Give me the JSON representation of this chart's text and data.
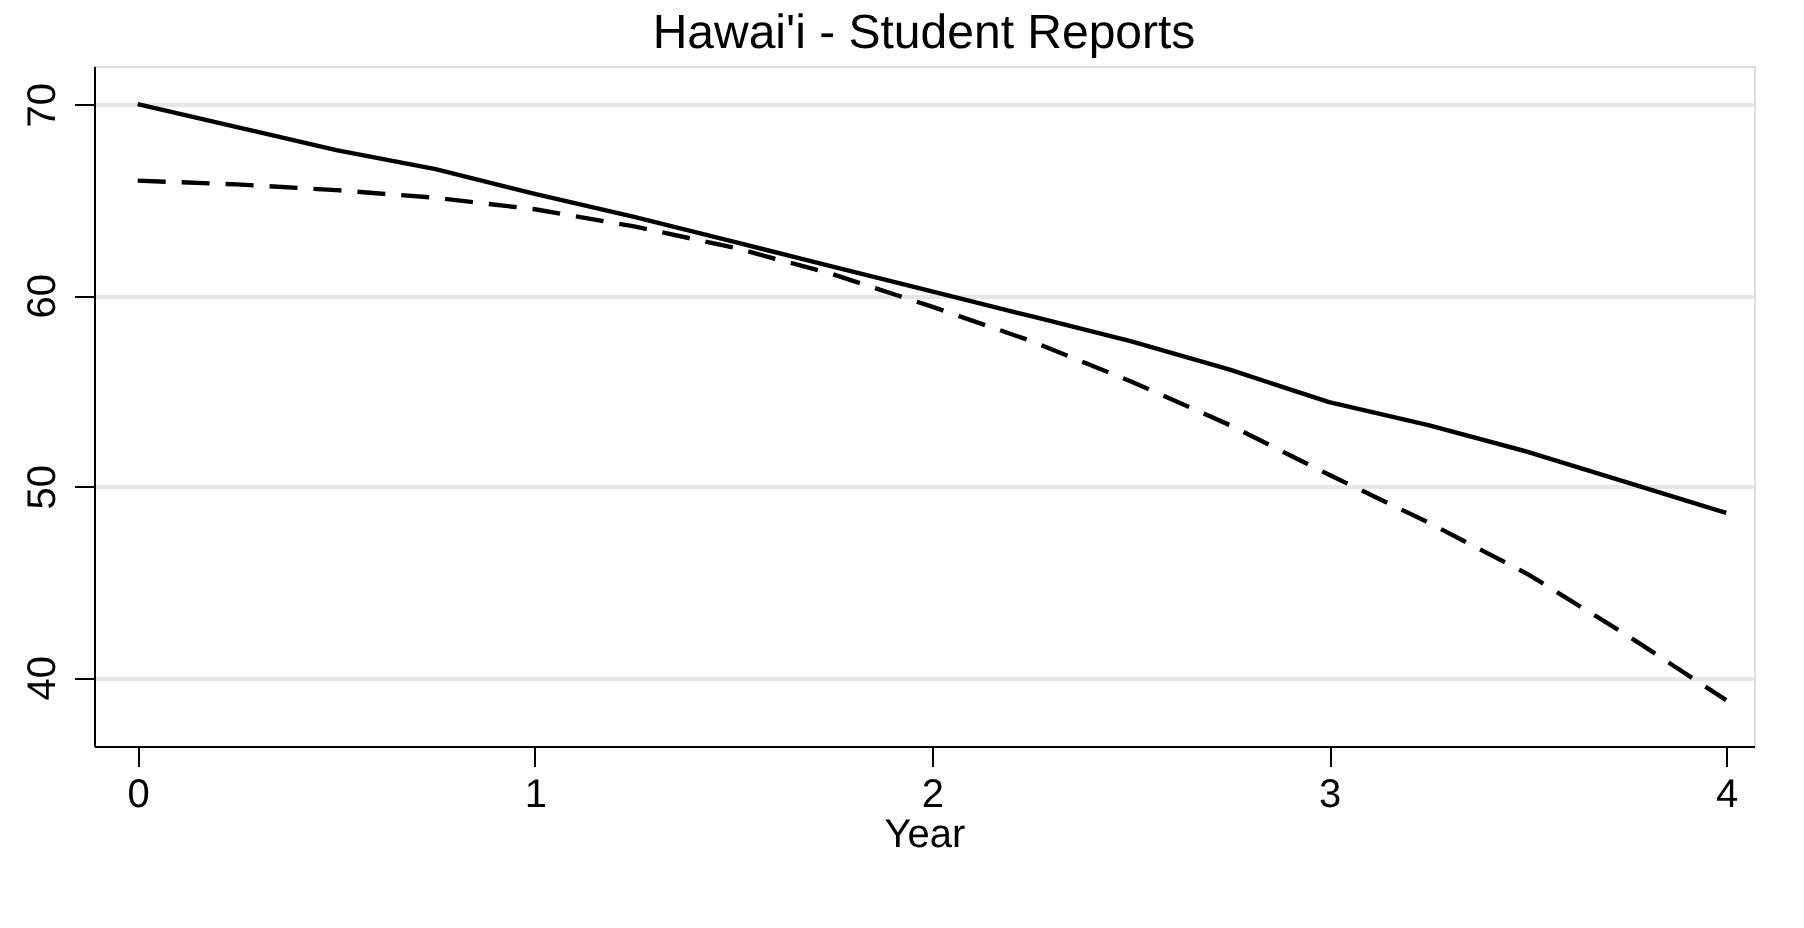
{
  "chart_data": {
    "type": "line",
    "title": "Hawai'i - Student Reports",
    "xlabel": "Year",
    "x": [
      0,
      0.25,
      0.5,
      0.75,
      1,
      1.25,
      1.5,
      1.75,
      2,
      2.25,
      2.5,
      2.75,
      3,
      3.25,
      3.5,
      3.75,
      4
    ],
    "series": [
      {
        "color": "#000000",
        "line_style": "solid",
        "values": [
          70,
          68.8,
          67.6,
          66.6,
          65.3,
          64.1,
          62.8,
          61.5,
          60.2,
          58.9,
          57.6,
          56.1,
          54.4,
          53.2,
          51.8,
          50.2,
          48.6
        ]
      },
      {
        "color": "#000000",
        "line_style": "dashed",
        "values": [
          66,
          65.8,
          65.5,
          65.1,
          64.5,
          63.6,
          62.5,
          61.1,
          59.4,
          57.6,
          55.5,
          53.2,
          50.6,
          48.1,
          45.4,
          42.2,
          38.8
        ]
      }
    ],
    "xlim": [
      -0.11,
      4.07
    ],
    "ylim": [
      36.4,
      72
    ],
    "xticks": [
      0,
      1,
      2,
      3,
      4
    ],
    "yticks": [
      40,
      50,
      60,
      70
    ],
    "grid": "y"
  }
}
